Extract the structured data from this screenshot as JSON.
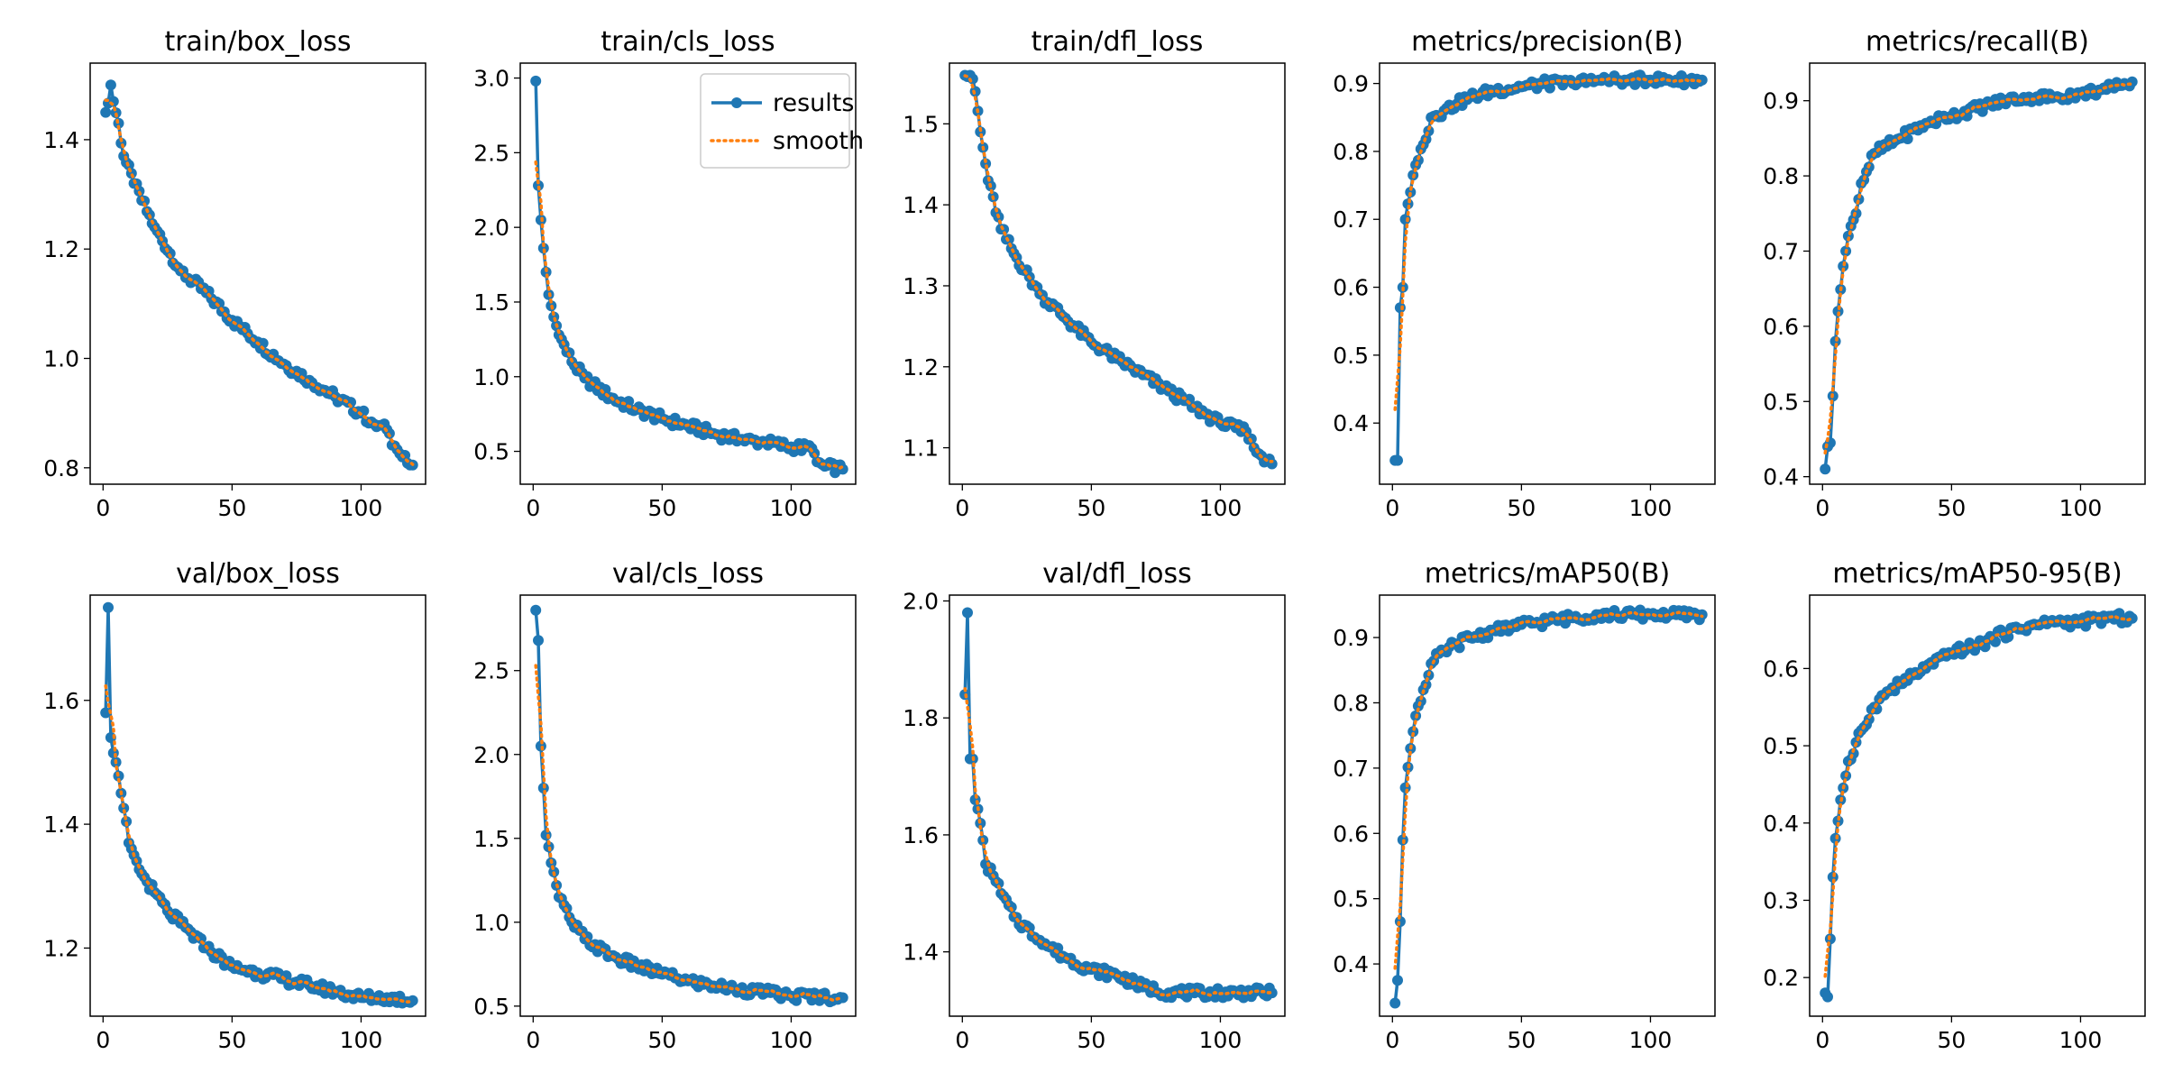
{
  "legend": {
    "results_label": "results",
    "smooth_label": "smooth"
  },
  "colors": {
    "results": "#1f77b4",
    "smooth": "#ff7f0e",
    "axes": "#000000"
  },
  "chart_data": [
    {
      "type": "line",
      "title": "train/box_loss",
      "xlim": [
        -5,
        125
      ],
      "ylim": [
        0.77,
        1.54
      ],
      "xticks": [
        0,
        50,
        100
      ],
      "yticks": [
        0.8,
        1.0,
        1.2,
        1.4
      ],
      "legend": false,
      "anchors_x": [
        1,
        3,
        4,
        6,
        8,
        12,
        20,
        30,
        40,
        50,
        60,
        70,
        80,
        90,
        100,
        105,
        110,
        113,
        116,
        119,
        120
      ],
      "anchors_y": [
        1.45,
        1.5,
        1.47,
        1.43,
        1.37,
        1.32,
        1.24,
        1.16,
        1.12,
        1.07,
        1.03,
        0.99,
        0.96,
        0.93,
        0.9,
        0.88,
        0.87,
        0.84,
        0.82,
        0.805,
        0.805
      ]
    },
    {
      "type": "line",
      "title": "train/cls_loss",
      "xlim": [
        -5,
        125
      ],
      "ylim": [
        0.28,
        3.1
      ],
      "xticks": [
        0,
        50,
        100
      ],
      "yticks": [
        0.5,
        1.0,
        1.5,
        2.0,
        2.5,
        3.0
      ],
      "legend": true,
      "anchors_x": [
        1,
        2,
        3,
        4,
        5,
        6,
        8,
        10,
        15,
        20,
        30,
        40,
        50,
        60,
        70,
        80,
        90,
        100,
        108,
        110,
        113,
        120
      ],
      "anchors_y": [
        2.98,
        2.28,
        2.05,
        1.86,
        1.7,
        1.55,
        1.4,
        1.28,
        1.1,
        0.99,
        0.86,
        0.78,
        0.72,
        0.67,
        0.62,
        0.58,
        0.56,
        0.53,
        0.52,
        0.43,
        0.4,
        0.38
      ]
    },
    {
      "type": "line",
      "title": "train/dfl_loss",
      "xlim": [
        -5,
        125
      ],
      "ylim": [
        1.055,
        1.575
      ],
      "xticks": [
        0,
        50,
        100
      ],
      "yticks": [
        1.1,
        1.2,
        1.3,
        1.4,
        1.5
      ],
      "legend": false,
      "anchors_x": [
        1,
        3,
        5,
        7,
        10,
        15,
        20,
        30,
        40,
        50,
        60,
        70,
        80,
        90,
        100,
        110,
        113,
        116,
        120
      ],
      "anchors_y": [
        1.56,
        1.56,
        1.54,
        1.49,
        1.43,
        1.37,
        1.34,
        1.29,
        1.26,
        1.23,
        1.21,
        1.19,
        1.17,
        1.15,
        1.13,
        1.12,
        1.1,
        1.09,
        1.08
      ]
    },
    {
      "type": "line",
      "title": "metrics/precision(B)",
      "xlim": [
        -5,
        125
      ],
      "ylim": [
        0.31,
        0.93
      ],
      "xticks": [
        0,
        50,
        100
      ],
      "yticks": [
        0.4,
        0.5,
        0.6,
        0.7,
        0.8,
        0.9
      ],
      "legend": false,
      "anchors_x": [
        1,
        2,
        3,
        4,
        5,
        7,
        9,
        12,
        15,
        20,
        25,
        30,
        40,
        50,
        60,
        70,
        80,
        90,
        100,
        110,
        120
      ],
      "anchors_y": [
        0.345,
        0.345,
        0.57,
        0.6,
        0.7,
        0.74,
        0.78,
        0.81,
        0.85,
        0.86,
        0.87,
        0.88,
        0.89,
        0.895,
        0.9,
        0.9,
        0.905,
        0.905,
        0.905,
        0.905,
        0.905
      ]
    },
    {
      "type": "line",
      "title": "metrics/recall(B)",
      "xlim": [
        -5,
        125
      ],
      "ylim": [
        0.39,
        0.95
      ],
      "xticks": [
        0,
        50,
        100
      ],
      "yticks": [
        0.4,
        0.5,
        0.6,
        0.7,
        0.8,
        0.9
      ],
      "legend": false,
      "anchors_x": [
        1,
        2,
        3,
        5,
        6,
        8,
        10,
        13,
        15,
        20,
        30,
        40,
        50,
        60,
        70,
        80,
        90,
        100,
        110,
        115,
        120
      ],
      "anchors_y": [
        0.41,
        0.44,
        0.445,
        0.58,
        0.62,
        0.68,
        0.72,
        0.75,
        0.79,
        0.83,
        0.85,
        0.87,
        0.88,
        0.89,
        0.9,
        0.905,
        0.905,
        0.91,
        0.915,
        0.92,
        0.925
      ]
    },
    {
      "type": "line",
      "title": "val/box_loss",
      "xlim": [
        -5,
        125
      ],
      "ylim": [
        1.09,
        1.77
      ],
      "xticks": [
        0,
        50,
        100
      ],
      "yticks": [
        1.2,
        1.4,
        1.6
      ],
      "legend": false,
      "anchors_x": [
        1,
        2,
        3,
        5,
        7,
        10,
        12,
        15,
        20,
        25,
        30,
        40,
        50,
        60,
        70,
        80,
        90,
        100,
        110,
        120
      ],
      "anchors_y": [
        1.58,
        1.75,
        1.54,
        1.5,
        1.45,
        1.37,
        1.35,
        1.32,
        1.29,
        1.26,
        1.24,
        1.2,
        1.17,
        1.16,
        1.15,
        1.14,
        1.13,
        1.12,
        1.12,
        1.115
      ]
    },
    {
      "type": "line",
      "title": "val/cls_loss",
      "xlim": [
        -5,
        125
      ],
      "ylim": [
        0.44,
        2.95
      ],
      "xticks": [
        0,
        50,
        100
      ],
      "yticks": [
        0.5,
        1.0,
        1.5,
        2.0,
        2.5
      ],
      "legend": false,
      "anchors_x": [
        1,
        2,
        3,
        4,
        5,
        6,
        8,
        10,
        15,
        20,
        30,
        40,
        50,
        60,
        70,
        80,
        90,
        100,
        110,
        120
      ],
      "anchors_y": [
        2.86,
        2.68,
        2.05,
        1.8,
        1.52,
        1.45,
        1.3,
        1.15,
        1.0,
        0.9,
        0.8,
        0.74,
        0.69,
        0.65,
        0.62,
        0.6,
        0.58,
        0.56,
        0.56,
        0.55
      ]
    },
    {
      "type": "line",
      "title": "val/dfl_loss",
      "xlim": [
        -5,
        125
      ],
      "ylim": [
        1.29,
        2.01
      ],
      "xticks": [
        0,
        50,
        100
      ],
      "yticks": [
        1.4,
        1.6,
        1.8,
        2.0
      ],
      "legend": false,
      "anchors_x": [
        1,
        2,
        3,
        4,
        5,
        7,
        9,
        12,
        15,
        20,
        30,
        40,
        50,
        60,
        70,
        80,
        90,
        100,
        110,
        120
      ],
      "anchors_y": [
        1.84,
        1.98,
        1.73,
        1.73,
        1.66,
        1.62,
        1.55,
        1.53,
        1.5,
        1.46,
        1.42,
        1.39,
        1.37,
        1.36,
        1.34,
        1.33,
        1.33,
        1.33,
        1.33,
        1.33
      ]
    },
    {
      "type": "line",
      "title": "metrics/mAP50(B)",
      "xlim": [
        -5,
        125
      ],
      "ylim": [
        0.32,
        0.965
      ],
      "xticks": [
        0,
        50,
        100
      ],
      "yticks": [
        0.4,
        0.5,
        0.6,
        0.7,
        0.8,
        0.9
      ],
      "legend": false,
      "anchors_x": [
        1,
        2,
        3,
        4,
        5,
        7,
        9,
        12,
        15,
        20,
        25,
        30,
        40,
        50,
        60,
        70,
        80,
        90,
        100,
        110,
        120
      ],
      "anchors_y": [
        0.34,
        0.375,
        0.465,
        0.59,
        0.67,
        0.73,
        0.78,
        0.82,
        0.86,
        0.88,
        0.89,
        0.9,
        0.91,
        0.92,
        0.925,
        0.93,
        0.935,
        0.935,
        0.935,
        0.935,
        0.935
      ]
    },
    {
      "type": "line",
      "title": "metrics/mAP50-95(B)",
      "xlim": [
        -5,
        125
      ],
      "ylim": [
        0.15,
        0.695
      ],
      "xticks": [
        0,
        50,
        100
      ],
      "yticks": [
        0.2,
        0.3,
        0.4,
        0.5,
        0.6
      ],
      "legend": false,
      "anchors_x": [
        1,
        2,
        3,
        4,
        5,
        7,
        10,
        12,
        15,
        20,
        25,
        30,
        40,
        50,
        60,
        70,
        80,
        90,
        100,
        110,
        120
      ],
      "anchors_y": [
        0.18,
        0.175,
        0.25,
        0.33,
        0.38,
        0.43,
        0.48,
        0.49,
        0.52,
        0.55,
        0.57,
        0.58,
        0.6,
        0.62,
        0.63,
        0.645,
        0.655,
        0.66,
        0.66,
        0.665,
        0.665
      ]
    }
  ]
}
